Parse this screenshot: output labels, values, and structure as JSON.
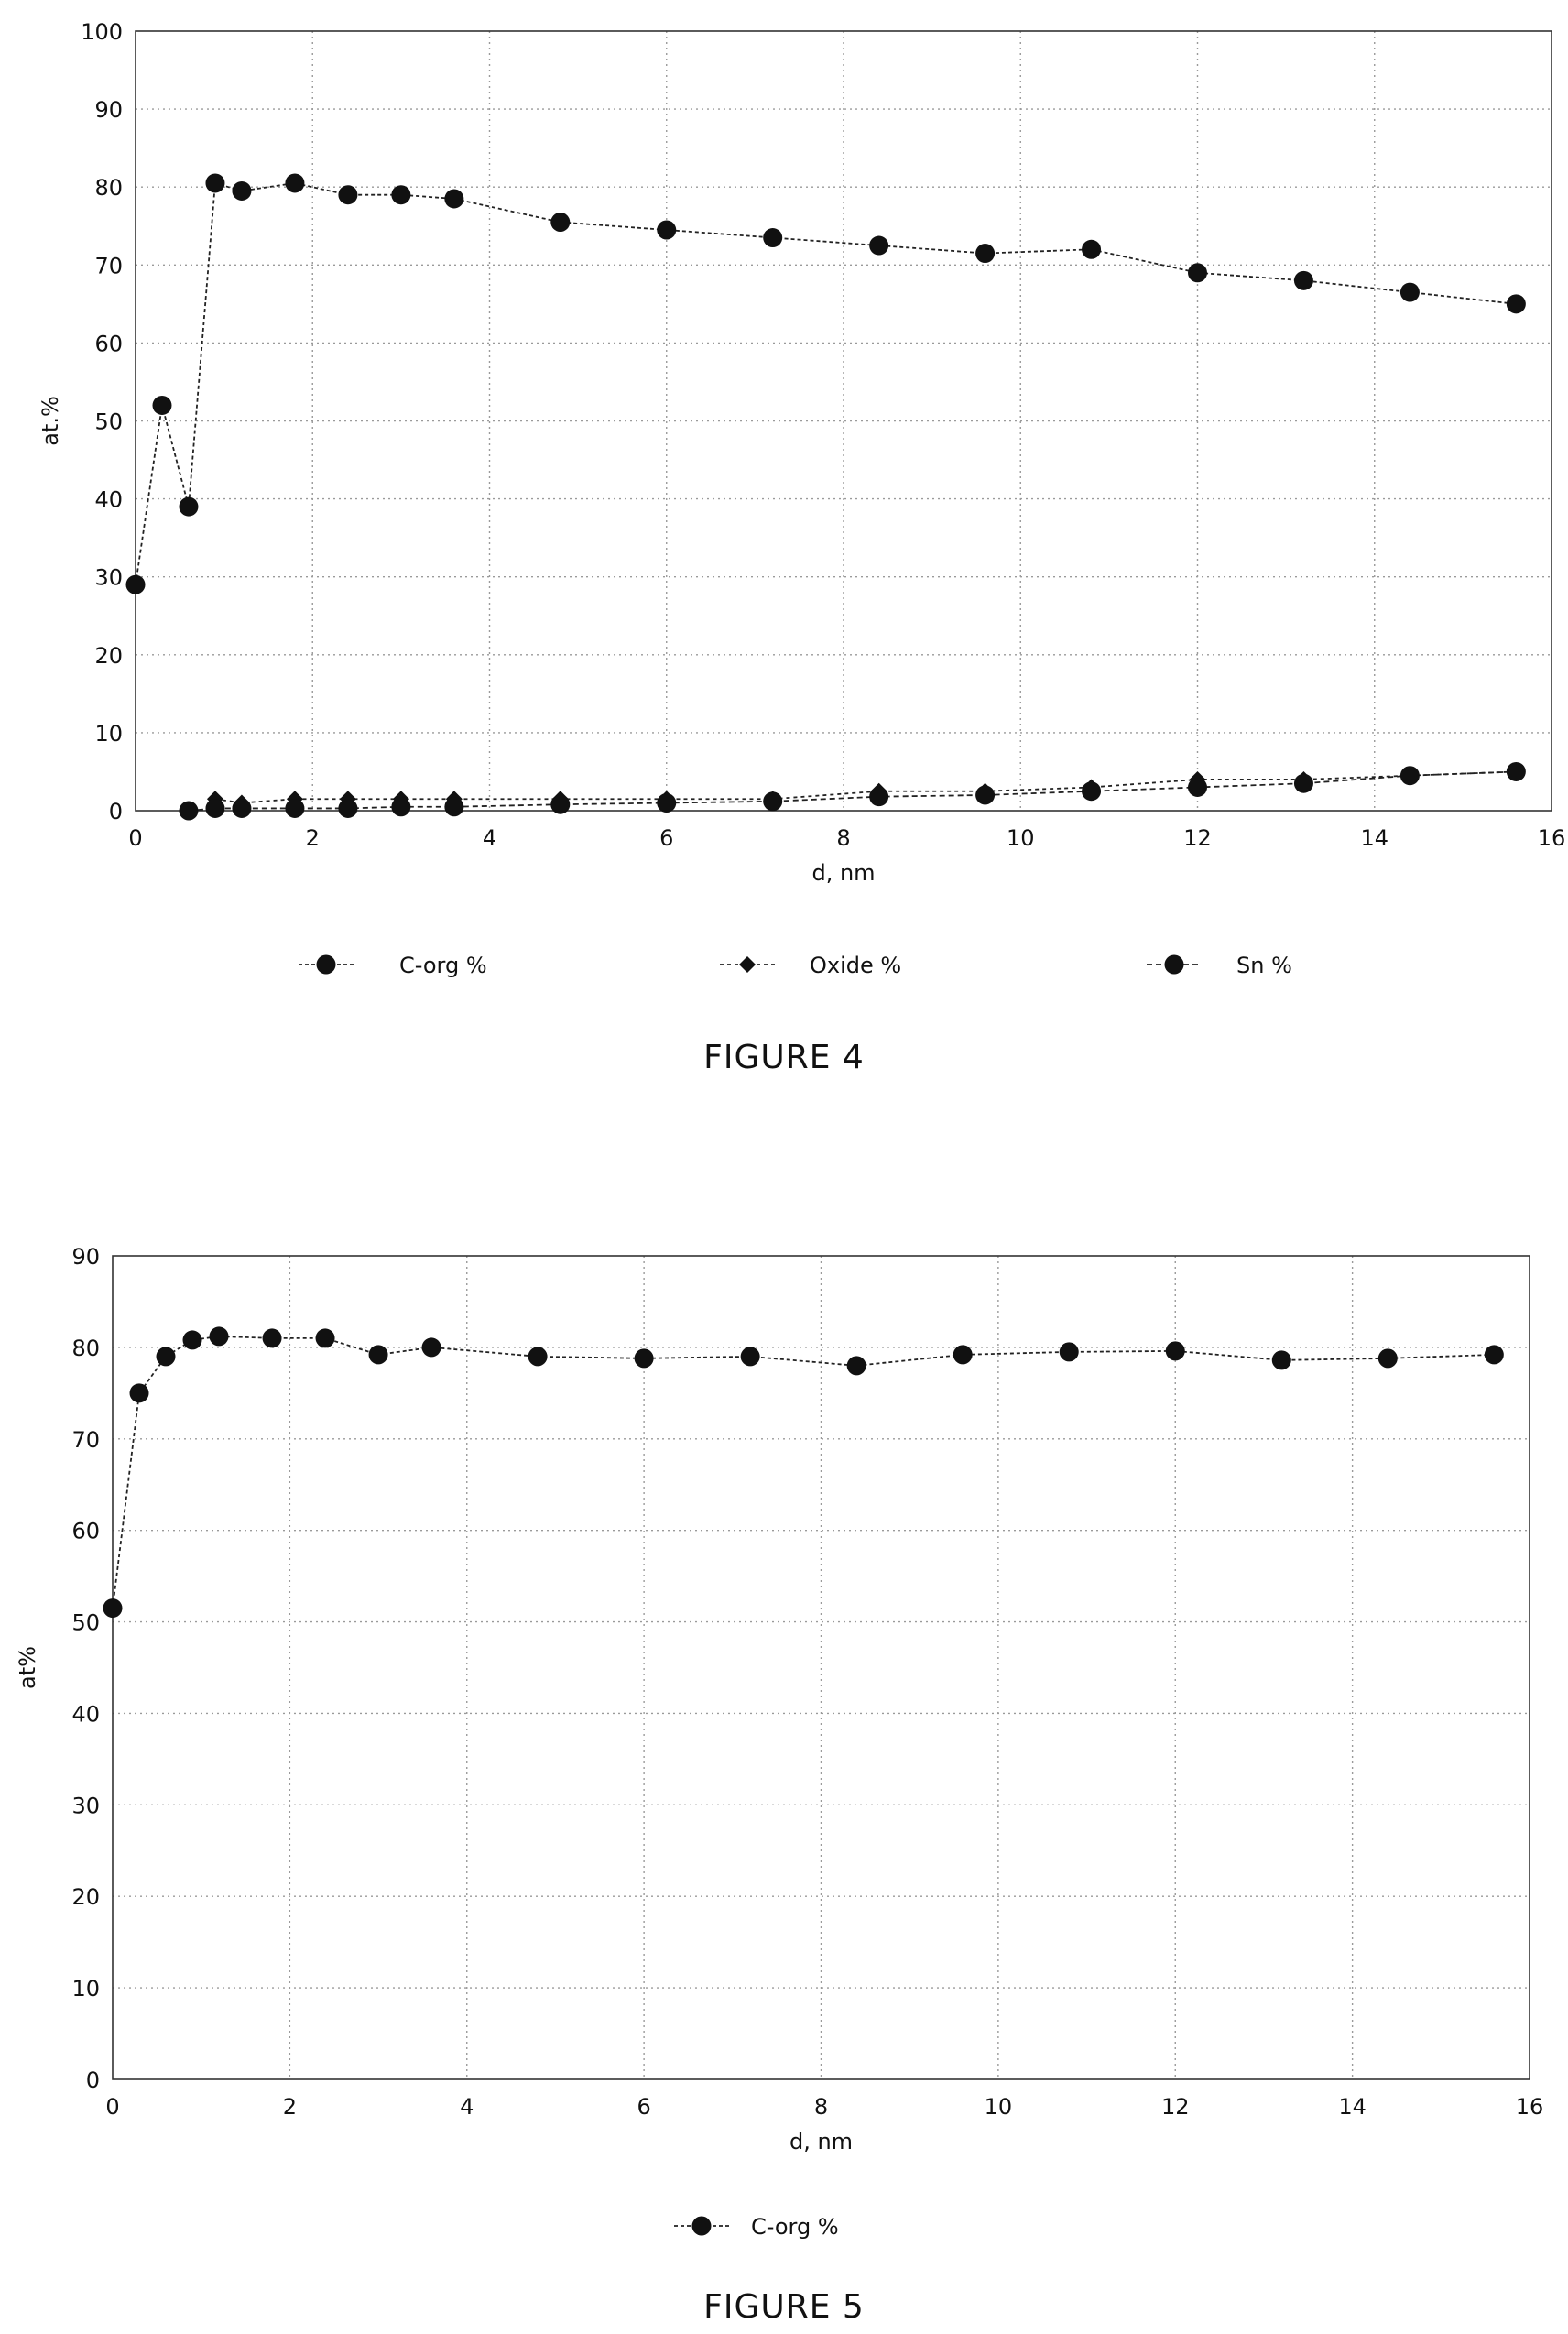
{
  "figures": [
    {
      "caption": "FIGURE 4"
    },
    {
      "caption": "FIGURE 5"
    }
  ],
  "chart_data": [
    {
      "type": "line",
      "title": "",
      "xlabel": "d, nm",
      "ylabel": "at.%",
      "xlim": [
        0,
        16
      ],
      "ylim": [
        0,
        100
      ],
      "xticks": [
        "0",
        "2",
        "4",
        "6",
        "8",
        "10",
        "12",
        "14",
        "16"
      ],
      "yticks": [
        "0",
        "10",
        "20",
        "30",
        "40",
        "50",
        "60",
        "70",
        "80",
        "90",
        "100"
      ],
      "grid": true,
      "legend_position": "bottom",
      "series": [
        {
          "name": "C-org %",
          "marker": "circle",
          "x": [
            0,
            0.3,
            0.6,
            0.9,
            1.2,
            1.8,
            2.4,
            3.0,
            3.6,
            4.8,
            6.0,
            7.2,
            8.4,
            9.6,
            10.8,
            12.0,
            13.2,
            14.4,
            15.6
          ],
          "y": [
            29,
            52,
            39,
            80.5,
            79.5,
            80.5,
            79,
            79,
            78.5,
            75.5,
            74.5,
            73.5,
            72.5,
            71.5,
            72,
            69,
            68,
            66.5,
            65
          ]
        },
        {
          "name": "Oxide %",
          "marker": "diamond",
          "x": [
            0.9,
            1.2,
            1.8,
            2.4,
            3.0,
            3.6,
            4.8,
            6.0,
            7.2,
            8.4,
            9.6,
            10.8,
            12.0,
            13.2,
            14.4,
            15.6
          ],
          "y": [
            1.5,
            1,
            1.5,
            1.5,
            1.5,
            1.5,
            1.5,
            1.5,
            1.5,
            2.5,
            2.5,
            3,
            4,
            4,
            4.5,
            5
          ]
        },
        {
          "name": "Sn %",
          "marker": "circle",
          "x": [
            0.6,
            0.9,
            1.2,
            1.8,
            2.4,
            3.0,
            3.6,
            4.8,
            6.0,
            7.2,
            8.4,
            9.6,
            10.8,
            12.0,
            13.2,
            14.4,
            15.6
          ],
          "y": [
            0,
            0.3,
            0.3,
            0.3,
            0.3,
            0.5,
            0.5,
            0.8,
            1,
            1.2,
            1.8,
            2,
            2.5,
            3,
            3.5,
            4.5,
            5
          ]
        }
      ]
    },
    {
      "type": "line",
      "title": "",
      "xlabel": "d, nm",
      "ylabel": "at%",
      "xlim": [
        0,
        16
      ],
      "ylim": [
        0,
        90
      ],
      "xticks": [
        "0",
        "2",
        "4",
        "6",
        "8",
        "10",
        "12",
        "14",
        "16"
      ],
      "yticks": [
        "0",
        "10",
        "20",
        "30",
        "40",
        "50",
        "60",
        "70",
        "80",
        "90"
      ],
      "grid": true,
      "legend_position": "bottom",
      "series": [
        {
          "name": "C-org %",
          "marker": "circle",
          "x": [
            0,
            0.3,
            0.6,
            0.9,
            1.2,
            1.8,
            2.4,
            3.0,
            3.6,
            4.8,
            6.0,
            7.2,
            8.4,
            9.6,
            10.8,
            12.0,
            13.2,
            14.4,
            15.6
          ],
          "y": [
            51.5,
            75,
            79,
            80.8,
            81.2,
            81,
            81,
            79.2,
            80,
            79,
            78.8,
            79,
            78,
            79.2,
            79.5,
            79.6,
            78.6,
            78.8,
            79.2
          ]
        }
      ]
    }
  ]
}
